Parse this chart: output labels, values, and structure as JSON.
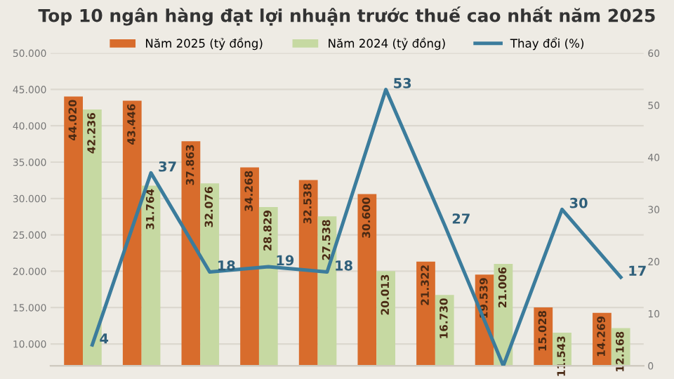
{
  "chart_data": {
    "type": "bar",
    "title": "Top 10 ngân hàng đạt lợi nhuận trước thuế cao nhất năm 2025",
    "categories": [
      null,
      null,
      null,
      null,
      null,
      null,
      null,
      null,
      null,
      null
    ],
    "series": [
      {
        "name": "Năm 2025 (tỷ đồng)",
        "color": "#d86c2c",
        "values": [
          44020,
          43446,
          37863,
          34268,
          32538,
          30600,
          21322,
          19539,
          15028,
          14269
        ],
        "value_labels": [
          "44.020",
          "43.446",
          "37.863",
          "34.268",
          "32.538",
          "30.600",
          "21.322",
          "19.539",
          "15.028",
          "14.269"
        ]
      },
      {
        "name": "Năm 2024 (tỷ đồng)",
        "color": "#c6d9a2",
        "values": [
          42236,
          31764,
          32076,
          28829,
          27538,
          20013,
          16730,
          21006,
          11543,
          12168
        ],
        "value_labels": [
          "42.236",
          "31.764",
          "32.076",
          "28.829",
          "27.538",
          "20.013",
          "16.730",
          "21.006",
          "11.543",
          "12.168"
        ]
      },
      {
        "name": "Thay đổi (%)",
        "type": "line",
        "axis": "y2",
        "color": "#3b7c9c",
        "values": [
          4,
          37,
          18,
          19,
          18,
          53,
          27,
          0,
          30,
          17
        ],
        "value_labels": [
          "4",
          "37",
          "18",
          "19",
          "18",
          "53",
          "27",
          null,
          "30",
          "17"
        ]
      }
    ],
    "ylim": [
      7000,
      50000
    ],
    "yticks": [
      {
        "value": 10000,
        "label": "10.000"
      },
      {
        "value": 15000,
        "label": "15.000"
      },
      {
        "value": 20000,
        "label": "20.000"
      },
      {
        "value": 25000,
        "label": "25.000"
      },
      {
        "value": 30000,
        "label": "30.000"
      },
      {
        "value": 35000,
        "label": "35.000"
      },
      {
        "value": 40000,
        "label": "40.000"
      },
      {
        "value": 45000,
        "label": "45.000"
      },
      {
        "value": 50000,
        "label": "50.000"
      }
    ],
    "y2lim": [
      0,
      60
    ],
    "y2ticks": [
      0,
      10,
      20,
      30,
      40,
      50,
      60
    ],
    "grid": "y",
    "legend": "top",
    "marker": "none",
    "line_style": "solid"
  }
}
